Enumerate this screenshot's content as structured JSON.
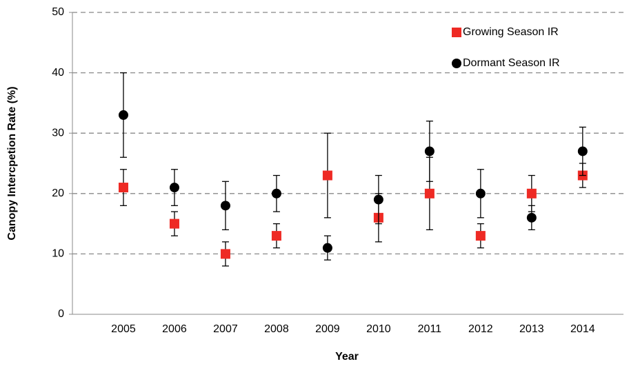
{
  "chart_data": {
    "type": "errorbar-scatter",
    "x_label": "Year",
    "y_label": "Canopy Intercpetion Rate (%)",
    "x": [
      2005,
      2006,
      2007,
      2008,
      2009,
      2010,
      2011,
      2012,
      2013,
      2014
    ],
    "xlim": [
      2004,
      2014.8
    ],
    "xticks": [
      2005,
      2006,
      2007,
      2008,
      2009,
      2010,
      2011,
      2012,
      2013,
      2014
    ],
    "ylim": [
      0,
      50
    ],
    "yticks": [
      0,
      10,
      20,
      30,
      40,
      50
    ],
    "grid": true,
    "legend": "top-right",
    "series": [
      {
        "name": "Growing Season IR",
        "color": "#ee2a24",
        "marker": "square",
        "values": [
          21,
          15,
          10,
          13,
          23,
          16,
          20,
          13,
          20,
          23
        ],
        "errors": [
          3,
          2,
          2,
          2,
          7,
          4,
          6,
          2,
          3,
          2
        ]
      },
      {
        "name": "Dormant Season IR",
        "color": "#000000",
        "marker": "circle",
        "values": [
          33,
          21,
          18,
          20,
          11,
          19,
          27,
          20,
          16,
          27
        ],
        "errors": [
          7,
          3,
          4,
          3,
          2,
          4,
          5,
          4,
          2,
          4
        ]
      }
    ]
  }
}
